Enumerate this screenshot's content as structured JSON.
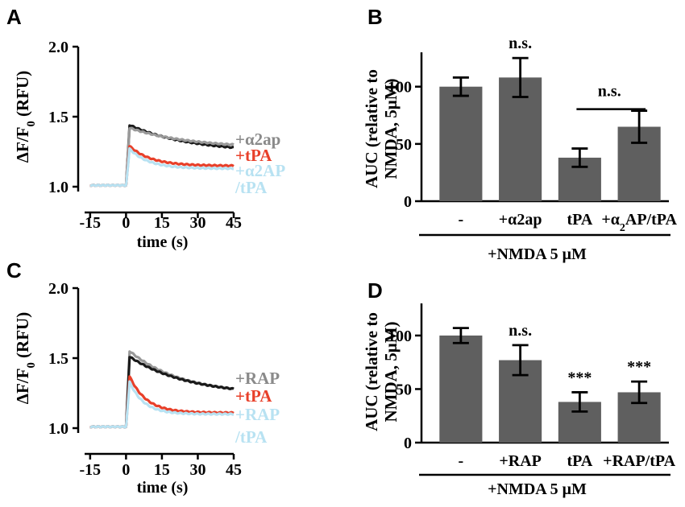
{
  "colors": {
    "black_trace": "#1a1a1a",
    "gray_trace": "#9a9a9a",
    "red_trace": "#e8402a",
    "lightblue_trace": "#b8e2f2",
    "bar_fill": "#5f5f5f",
    "axis": "#000000"
  },
  "chart_data": [
    {
      "panel": "A",
      "type": "line",
      "xlabel": "time (s)",
      "ylabel_parts": [
        "ΔF/F",
        "0",
        " (RFU)"
      ],
      "xlim": [
        -20,
        45
      ],
      "ylim": [
        1.0,
        2.0
      ],
      "xticks": [
        "-15",
        "0",
        "15",
        "30",
        "45"
      ],
      "xtick_values": [
        -15,
        0,
        15,
        30,
        45
      ],
      "yticks": [
        "1.0",
        "1.5",
        "2.0"
      ],
      "ytick_values": [
        1.0,
        1.5,
        2.0
      ],
      "series": [
        {
          "name": "black",
          "color": "#1a1a1a",
          "baseline": 1.01,
          "peak": 1.44,
          "end": 1.28,
          "tau": 25
        },
        {
          "name": "+α2ap",
          "color": "#9a9a9a",
          "baseline": 1.01,
          "peak": 1.42,
          "end": 1.3,
          "tau": 25
        },
        {
          "name": "+tPA",
          "color": "#e8402a",
          "baseline": 1.01,
          "peak": 1.29,
          "end": 1.15,
          "tau": 9
        },
        {
          "name": "+α2AP/tPA",
          "color": "#b8e2f2",
          "baseline": 1.01,
          "peak": 1.27,
          "end": 1.13,
          "tau": 8
        }
      ],
      "legend": [
        {
          "text": "+α2ap",
          "color": "#8a8a8a"
        },
        {
          "text": "+tPA",
          "color": "#e8402a"
        },
        {
          "text": "+α2AP",
          "color": "#b8e2f2"
        },
        {
          "text": "/tPA",
          "color": "#b8e2f2"
        }
      ]
    },
    {
      "panel": "B",
      "type": "bar",
      "ylabel_lines": [
        "AUC (relative to",
        "NMDA, 5μM)"
      ],
      "ylim": [
        0,
        130
      ],
      "yticks": [
        "0",
        "50",
        "100"
      ],
      "ytick_values": [
        0,
        50,
        100
      ],
      "categories": [
        "-",
        "+α2ap",
        "tPA",
        "+α2AP/tPA"
      ],
      "category_parts": [
        [
          "-"
        ],
        [
          "+α2ap"
        ],
        [
          "tPA"
        ],
        [
          "+α",
          "2",
          "AP/tPA"
        ]
      ],
      "values": [
        100,
        108,
        38,
        65
      ],
      "errors": [
        8,
        17,
        8,
        14
      ],
      "annotations": [
        {
          "text": "n.s.",
          "over": 1
        },
        {
          "text": "n.s.",
          "between": [
            2,
            3
          ]
        }
      ],
      "group_label": "+NMDA 5 μM"
    },
    {
      "panel": "C",
      "type": "line",
      "xlabel": "time (s)",
      "ylabel_parts": [
        "ΔF/F",
        "0",
        " (RFU)"
      ],
      "xlim": [
        -20,
        45
      ],
      "ylim": [
        1.0,
        2.0
      ],
      "xticks": [
        "-15",
        "0",
        "15",
        "30",
        "45"
      ],
      "xtick_values": [
        -15,
        0,
        15,
        30,
        45
      ],
      "yticks": [
        "1.0",
        "1.5",
        "2.0"
      ],
      "ytick_values": [
        1.0,
        1.5,
        2.0
      ],
      "series": [
        {
          "name": "+RAP",
          "color": "#9a9a9a",
          "baseline": 1.01,
          "peak": 1.55,
          "end": 1.28,
          "tau": 22
        },
        {
          "name": "black",
          "color": "#1a1a1a",
          "baseline": 1.01,
          "peak": 1.51,
          "end": 1.28,
          "tau": 25
        },
        {
          "name": "+tPA",
          "color": "#e8402a",
          "baseline": 1.01,
          "peak": 1.37,
          "end": 1.11,
          "tau": 7
        },
        {
          "name": "+RAP/tPA",
          "color": "#b8e2f2",
          "baseline": 1.01,
          "peak": 1.33,
          "end": 1.1,
          "tau": 6
        }
      ],
      "legend": [
        {
          "text": "+RAP",
          "color": "#8a8a8a"
        },
        {
          "text": "+tPA",
          "color": "#e8402a"
        },
        {
          "text": "+RAP",
          "color": "#b8e2f2"
        },
        {
          "text": "/tPA",
          "color": "#b8e2f2"
        }
      ]
    },
    {
      "panel": "D",
      "type": "bar",
      "ylabel_lines": [
        "AUC (relative to",
        "NMDA, 5μM)"
      ],
      "ylim": [
        0,
        130
      ],
      "yticks": [
        "0",
        "50",
        "100"
      ],
      "ytick_values": [
        0,
        50,
        100
      ],
      "categories": [
        "-",
        "+RAP",
        "tPA",
        "+RAP/tPA"
      ],
      "category_parts": [
        [
          "-"
        ],
        [
          "+RAP"
        ],
        [
          "tPA"
        ],
        [
          "+RAP/tPA"
        ]
      ],
      "values": [
        100,
        77,
        38,
        47
      ],
      "errors": [
        7,
        14,
        9,
        10
      ],
      "annotations": [
        {
          "text": "n.s.",
          "over": 1
        },
        {
          "text": "***",
          "over": 2
        },
        {
          "text": "***",
          "over": 3
        }
      ],
      "group_label": "+NMDA 5 μM"
    }
  ]
}
